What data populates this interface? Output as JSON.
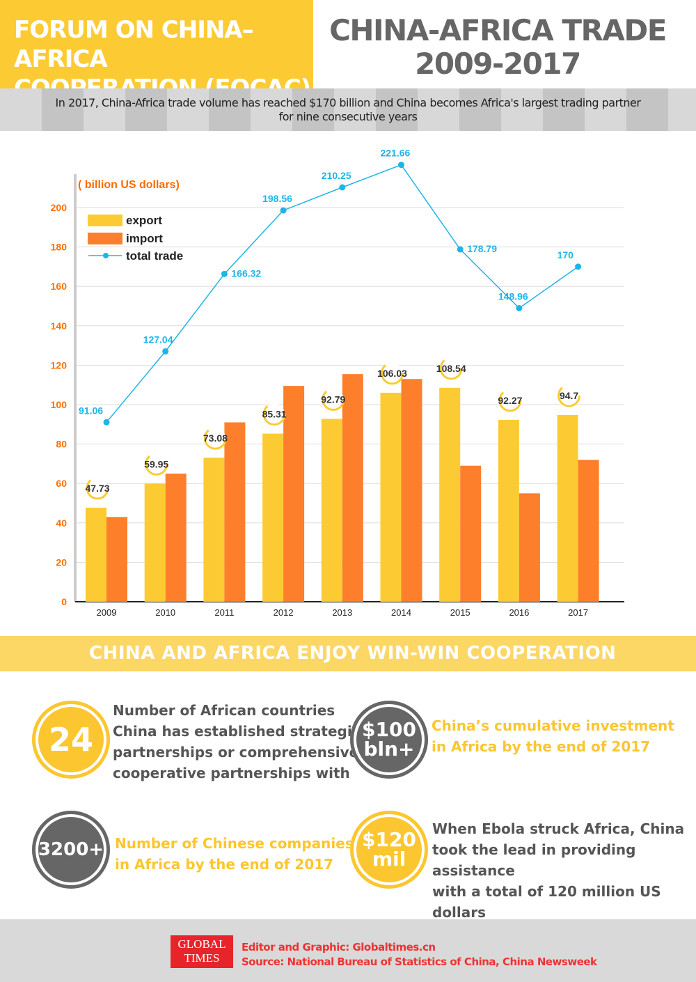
{
  "header": {
    "left_title_line1": "FORUM ON CHINA–AFRICA",
    "left_title_line2": "COOPERATION (FOCAC)",
    "right_title_line1": "CHINA-AFRICA TRADE",
    "right_title_line2": "2009-2017"
  },
  "banner": {
    "line1": "In 2017, China-Africa trade volume has reached $170 billion and China becomes Africa's largest trading partner",
    "line2": "for nine consecutive years"
  },
  "chart_data": {
    "type": "bar",
    "ylabel": "( billion US dollars)",
    "ylim": [
      0,
      200
    ],
    "yticks": [
      "0",
      "20",
      "40",
      "60",
      "80",
      "100",
      "120",
      "140",
      "160",
      "180",
      "200"
    ],
    "categories": [
      "2009",
      "2010",
      "2011",
      "2012",
      "2013",
      "2014",
      "2015",
      "2016",
      "2017"
    ],
    "grid": true,
    "legend_position": "top-left",
    "series": [
      {
        "name": "export",
        "type": "bar",
        "color": "#fccb33",
        "values": [
          47.73,
          59.95,
          73.08,
          85.31,
          92.79,
          106.03,
          108.54,
          92.27,
          94.7
        ],
        "labels": [
          "47.73",
          "59.95",
          "73.08",
          "85.31",
          "92.79",
          "106.03",
          "108.54",
          "92.27",
          "94.7"
        ]
      },
      {
        "name": "import",
        "type": "bar",
        "color": "#fd7f2c",
        "values": [
          43,
          65,
          91,
          109.5,
          115.5,
          113,
          69,
          55,
          72
        ]
      },
      {
        "name": "total trade",
        "type": "line",
        "color": "#1cb5e8",
        "values": [
          91.06,
          127.04,
          166.32,
          198.56,
          210.25,
          221.66,
          178.79,
          148.96,
          170
        ],
        "labels": [
          "91.06",
          "127.04",
          "166.32",
          "198.56",
          "210.25",
          "221.66",
          "178.79",
          "148.96",
          "170"
        ]
      }
    ]
  },
  "band": {
    "title": "CHINA AND AFRICA ENJOY WIN-WIN COOPERATION"
  },
  "stats": [
    {
      "value": "24",
      "text": [
        "Number of African countries",
        "China has established strategic",
        "partnerships or comprehensive",
        "cooperative partnerships with"
      ]
    },
    {
      "value_line1": "$100",
      "value_line2": "bln+",
      "text": [
        "China’s cumulative investment",
        "in Africa by the end of 2017"
      ]
    },
    {
      "value": "3200+",
      "text": [
        "Number of Chinese companies",
        "in Africa by the end of 2017"
      ]
    },
    {
      "value_line1": "$120",
      "value_line2": "mil",
      "text": [
        "When Ebola struck Africa, China",
        "took the lead in providing assistance",
        "with a total of 120 million US dollars"
      ]
    }
  ],
  "footer": {
    "logo": "GLOBAL TIMES",
    "editor": "Editor and Graphic: Globaltimes.cn",
    "source": "Source: National Bureau of Statistics of China, China Newsweek"
  }
}
